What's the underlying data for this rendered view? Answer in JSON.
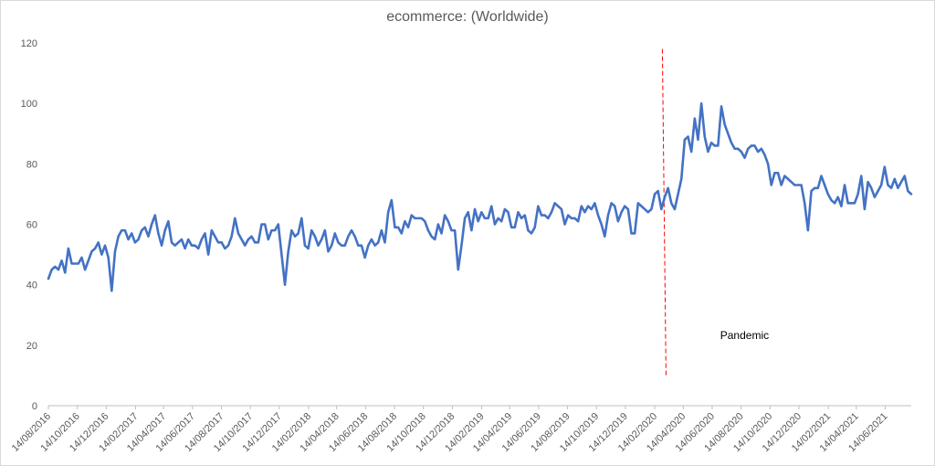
{
  "chart_data": {
    "type": "line",
    "title": "ecommerce: (Worldwide)",
    "xlabel": "",
    "ylabel": "",
    "ylim": [
      0,
      120
    ],
    "y_ticks": [
      "0",
      "20",
      "40",
      "60",
      "80",
      "100",
      "120"
    ],
    "grid": false,
    "legend": "none",
    "x_start": "14/08/2016",
    "x_end": "08/08/2021",
    "x_ticks": [
      "14/08/2016",
      "14/10/2016",
      "14/12/2016",
      "14/02/2017",
      "14/04/2017",
      "14/06/2017",
      "14/08/2017",
      "14/10/2017",
      "14/12/2017",
      "14/02/2018",
      "14/04/2018",
      "14/06/2018",
      "14/08/2018",
      "14/10/2018",
      "14/12/2018",
      "14/02/2019",
      "14/04/2019",
      "14/06/2019",
      "14/08/2019",
      "14/10/2019",
      "14/12/2019",
      "14/02/2020",
      "14/04/2020",
      "14/06/2020",
      "14/08/2020",
      "14/10/2020",
      "14/12/2020",
      "14/02/2021",
      "14/04/2021",
      "14/06/2021"
    ],
    "series": [
      {
        "name": "",
        "color": "#4472c4",
        "frequency": "weekly",
        "values": [
          42,
          45,
          46,
          45,
          48,
          44,
          52,
          47,
          47,
          47,
          49,
          45,
          48,
          51,
          52,
          54,
          50,
          53,
          49,
          38,
          51,
          56,
          58,
          58,
          55,
          57,
          54,
          55,
          58,
          59,
          56,
          60,
          63,
          57,
          53,
          58,
          61,
          54,
          53,
          54,
          55,
          52,
          55,
          53,
          53,
          52,
          55,
          57,
          50,
          58,
          56,
          54,
          54,
          52,
          53,
          56,
          62,
          57,
          55,
          53,
          55,
          56,
          54,
          54,
          60,
          60,
          55,
          58,
          58,
          60,
          50,
          40,
          51,
          58,
          56,
          57,
          62,
          53,
          52,
          58,
          56,
          53,
          55,
          58,
          51,
          53,
          57,
          54,
          53,
          53,
          56,
          58,
          56,
          53,
          53,
          49,
          53,
          55,
          53,
          54,
          58,
          54,
          64,
          68,
          59,
          59,
          57,
          61,
          59,
          63,
          62,
          62,
          62,
          61,
          58,
          56,
          55,
          60,
          57,
          63,
          61,
          58,
          58,
          45,
          53,
          62,
          64,
          58,
          65,
          61,
          64,
          62,
          62,
          66,
          60,
          62,
          61,
          65,
          64,
          59,
          59,
          64,
          62,
          63,
          58,
          57,
          59,
          66,
          63,
          63,
          62,
          64,
          67,
          66,
          65,
          60,
          63,
          62,
          62,
          61,
          66,
          64,
          66,
          65,
          67,
          63,
          60,
          56,
          63,
          67,
          66,
          61,
          64,
          66,
          65,
          57,
          57,
          67,
          66,
          65,
          64,
          65,
          70,
          71,
          65,
          69,
          72,
          67,
          65,
          70,
          75,
          88,
          89,
          84,
          95,
          88,
          100,
          89,
          84,
          87,
          86,
          86,
          99,
          93,
          90,
          87,
          85,
          85,
          84,
          82,
          85,
          86,
          86,
          84,
          85,
          83,
          80,
          73,
          77,
          77,
          73,
          76,
          75,
          74,
          73,
          73,
          73,
          67,
          58,
          71,
          72,
          72,
          76,
          73,
          70,
          68,
          67,
          69,
          66,
          73,
          67,
          67,
          67,
          70,
          76,
          65,
          74,
          72,
          69,
          71,
          73,
          79,
          73,
          72,
          75,
          72,
          74,
          76,
          71,
          70
        ]
      }
    ],
    "annotations": [
      {
        "type": "vertical-dashed-line",
        "x": "01/03/2020",
        "color": "#ff0000",
        "y_range": [
          10,
          118
        ]
      },
      {
        "type": "text",
        "text": "Pandemic",
        "x": "01/07/2020",
        "y": 22
      }
    ]
  }
}
